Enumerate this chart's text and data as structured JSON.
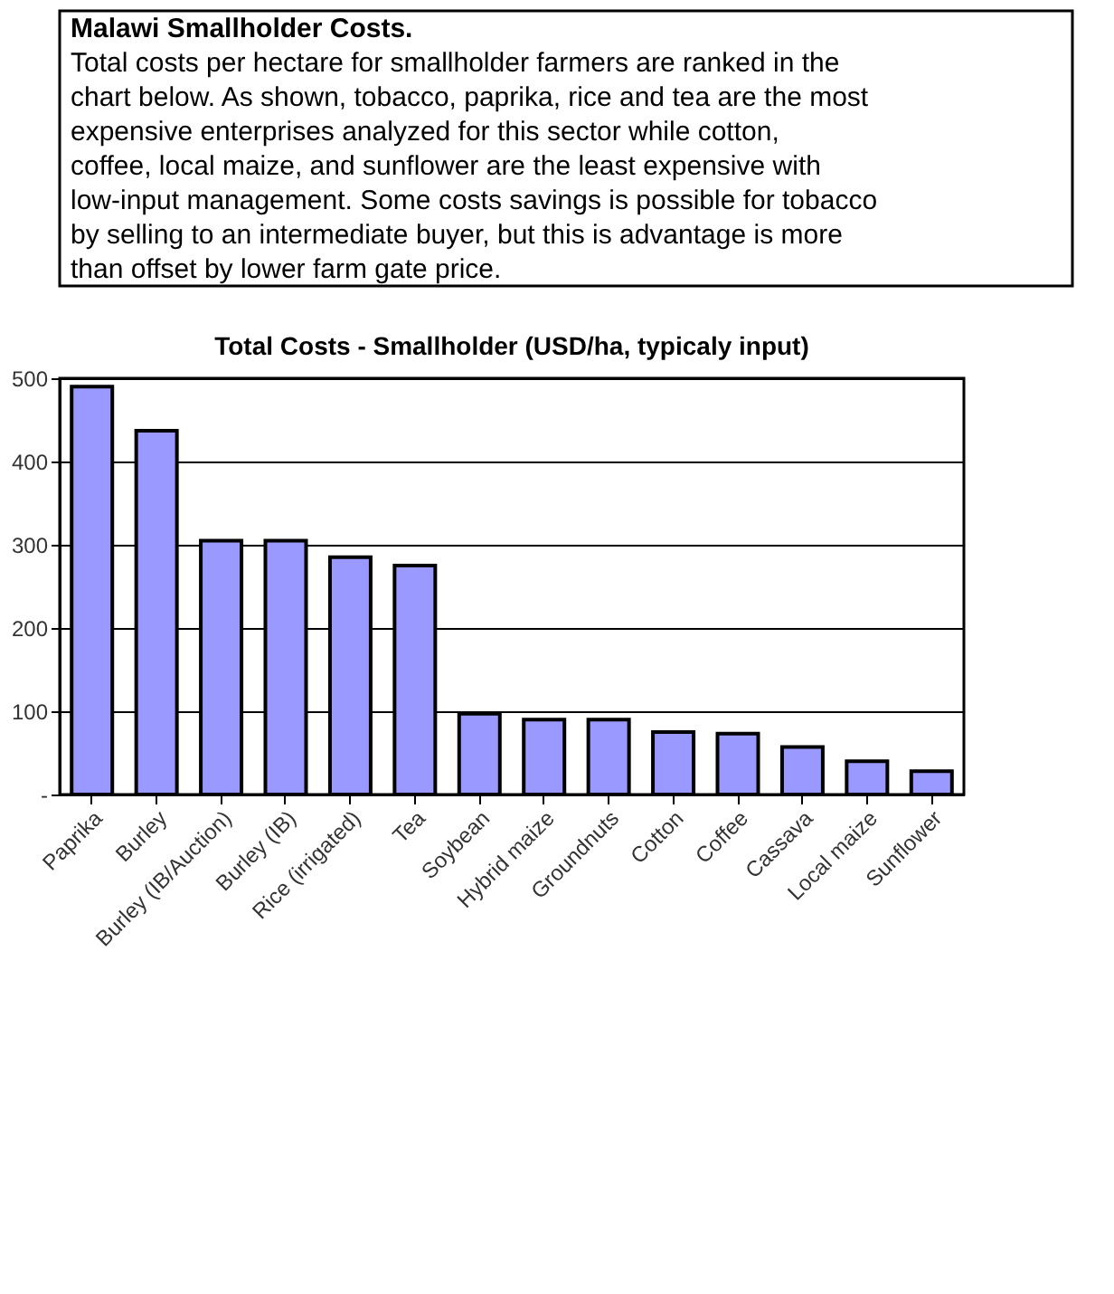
{
  "chart_data": {
    "type": "bar",
    "title": "Total Costs - Smallholder (USD/ha, typicaly input)",
    "annotations": [
      "Malawi Smallholder Costs.",
      "Total costs per hectare for smallholder farmers are ranked in the chart below. As shown, tobacco, paprika, rice and tea are the most expensive enterprises analyzed for this sector while cotton, coffee, local maize, and sunflower are the least expensive with low-input management. Some costs savings is possible for tobacco by selling to an intermediate buyer, but this is advantage is more than offset by lower farm gate price."
    ],
    "categories": [
      "Paprika",
      "Burley",
      "Burley (IB/Auction)",
      "Burley (IB)",
      "Rice (irrigated)",
      "Tea",
      "Soybean",
      "Hybrid maize",
      "Groundnuts",
      "Cotton",
      "Coffee",
      "Cassava",
      "Local maize",
      "Sunflower"
    ],
    "values": [
      490,
      437,
      305,
      305,
      285,
      275,
      97,
      90,
      90,
      75,
      73,
      57,
      40,
      28
    ],
    "color": "#9999ff",
    "ylim": [
      0,
      500
    ],
    "yticks": [
      {
        "value": 0,
        "label": "-"
      },
      100,
      200,
      300,
      400,
      500
    ],
    "grid": "y"
  }
}
